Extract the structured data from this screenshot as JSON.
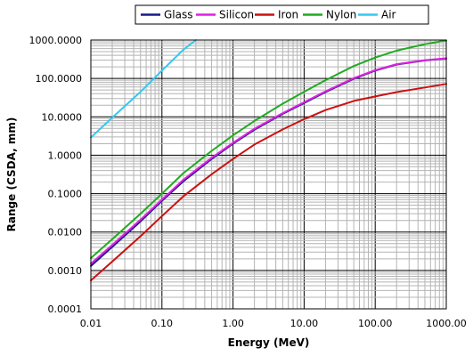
{
  "chart_data": {
    "type": "line",
    "title": "",
    "xlabel": "Energy (MeV)",
    "ylabel": "Range (CSDA, mm)",
    "x_scale": "log",
    "y_scale": "log",
    "xlim": [
      0.01,
      1000
    ],
    "ylim": [
      0.0001,
      1000
    ],
    "x_ticks": [
      "0.01",
      "0.10",
      "1.00",
      "10.00",
      "100.00",
      "1000.00"
    ],
    "y_ticks": [
      "0.0001",
      "0.0010",
      "0.0100",
      "0.1000",
      "1.0000",
      "10.0000",
      "100.0000",
      "1000.0000"
    ],
    "grid": true,
    "legend_position": "top",
    "series": [
      {
        "name": "Glass",
        "color": "#1a1a8c",
        "x": [
          0.01,
          0.02,
          0.05,
          0.1,
          0.2,
          0.5,
          1,
          2,
          5,
          10,
          20,
          50,
          100,
          200,
          500,
          1000
        ],
        "y": [
          0.0013,
          0.0041,
          0.019,
          0.065,
          0.21,
          0.8,
          2.0,
          4.6,
          12,
          23,
          44,
          98,
          160,
          230,
          295,
          330
        ]
      },
      {
        "name": "Silicon",
        "color": "#e020e0",
        "x": [
          0.01,
          0.02,
          0.05,
          0.1,
          0.2,
          0.5,
          1,
          2,
          5,
          10,
          20,
          50,
          100,
          200,
          500,
          1000
        ],
        "y": [
          0.0015,
          0.0046,
          0.021,
          0.07,
          0.23,
          0.86,
          2.1,
          4.9,
          12.5,
          24,
          46,
          102,
          165,
          235,
          300,
          335
        ]
      },
      {
        "name": "Iron",
        "color": "#cc1111",
        "x": [
          0.01,
          0.02,
          0.05,
          0.1,
          0.2,
          0.5,
          1,
          2,
          5,
          10,
          20,
          50,
          100,
          200,
          500,
          1000
        ],
        "y": [
          0.00055,
          0.0017,
          0.0078,
          0.026,
          0.085,
          0.32,
          0.8,
          1.9,
          4.7,
          8.7,
          15,
          26,
          34,
          44,
          58,
          72
        ]
      },
      {
        "name": "Nylon",
        "color": "#22aa22",
        "x": [
          0.01,
          0.02,
          0.05,
          0.1,
          0.2,
          0.5,
          1,
          2,
          5,
          10,
          20,
          50,
          100,
          200,
          500,
          1000
        ],
        "y": [
          0.0021,
          0.0065,
          0.03,
          0.1,
          0.34,
          1.3,
          3.3,
          7.8,
          22,
          45,
          90,
          210,
          350,
          530,
          780,
          980
        ]
      },
      {
        "name": "Air",
        "color": "#33c8f0",
        "x": [
          0.01,
          0.02,
          0.05,
          0.1,
          0.2,
          0.3
        ],
        "y": [
          2.9,
          9.5,
          45,
          160,
          560,
          1000
        ]
      }
    ]
  }
}
